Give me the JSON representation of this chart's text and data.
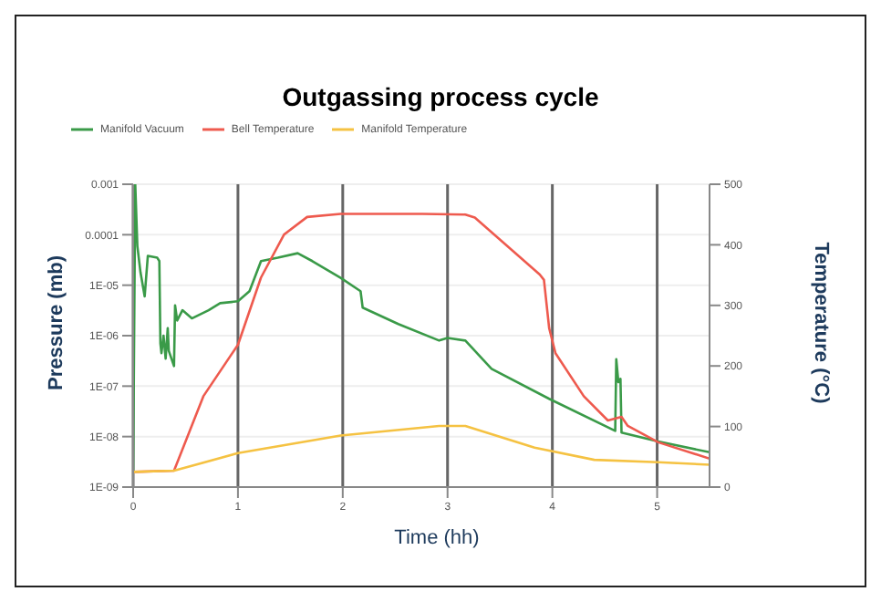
{
  "chart_data": {
    "type": "line",
    "title": "Outgassing process cycle",
    "xlabel": "Time (hh)",
    "ylabel": "Pressure (mb)",
    "y2label": "Temperature (°C)",
    "xlim": [
      0,
      5.5
    ],
    "xticks": [
      0,
      1,
      2,
      3,
      4,
      5
    ],
    "ylim": [
      1e-09,
      0.001
    ],
    "yticks": [
      {
        "value": 1e-09,
        "label": "1E-09"
      },
      {
        "value": 1e-08,
        "label": "1E-08"
      },
      {
        "value": 1e-07,
        "label": "1E-07"
      },
      {
        "value": 1e-06,
        "label": "1E-06"
      },
      {
        "value": 1e-05,
        "label": "1E-05"
      },
      {
        "value": 0.0001,
        "label": "0.0001"
      },
      {
        "value": 0.001,
        "label": "0.001"
      }
    ],
    "log": "y",
    "y2lim": [
      0,
      500
    ],
    "y2ticks": [
      0,
      100,
      200,
      300,
      400,
      500
    ],
    "grid": true,
    "legend": "top left",
    "marker": "none",
    "line_style": "solid",
    "series": [
      {
        "name": "Manifold Vacuum",
        "color": "#3a9a48",
        "x": [
          0,
          0.02,
          0.04,
          0.07,
          0.11,
          0.14,
          0.23,
          0.25,
          0.26,
          0.27,
          0.29,
          0.31,
          0.33,
          0.34,
          0.39,
          0.4,
          0.42,
          0.47,
          0.56,
          0.72,
          0.83,
          1.0,
          1.11,
          1.22,
          1.38,
          1.57,
          1.71,
          1.98,
          2.17,
          2.19,
          2.53,
          2.92,
          3.0,
          3.17,
          3.42,
          3.97,
          4.6,
          4.61,
          4.63,
          4.65,
          4.66,
          5.01,
          5.5
        ],
        "values": [
          2e-09,
          0.001,
          6e-05,
          1.8e-05,
          6e-06,
          3.8e-05,
          3.5e-05,
          3e-05,
          7e-07,
          4.5e-07,
          1e-06,
          3.5e-07,
          1.4e-06,
          5e-07,
          2.5e-07,
          4e-06,
          2e-06,
          3.2e-06,
          2.2e-06,
          3.2e-06,
          4.4e-06,
          4.8e-06,
          7.6e-06,
          3e-05,
          3.5e-05,
          4.3e-05,
          3e-05,
          1.4e-05,
          7.6e-06,
          3.6e-06,
          1.7e-06,
          8e-07,
          9e-07,
          8e-07,
          2.2e-07,
          5.6e-08,
          1.3e-08,
          3.4e-07,
          1.2e-07,
          1.4e-07,
          1.2e-08,
          8e-09,
          4.9e-09
        ]
      },
      {
        "name": "Bell Temperature",
        "color": "#ee5a4e",
        "axis": "y2",
        "x": [
          0,
          0.39,
          0.67,
          1.0,
          1.22,
          1.44,
          1.66,
          1.98,
          2.76,
          3.17,
          3.26,
          3.88,
          3.92,
          3.97,
          4.03,
          4.3,
          4.53,
          4.66,
          4.72,
          5.01,
          5.5
        ],
        "values": [
          25,
          27,
          150,
          235,
          346,
          417,
          446,
          451,
          451,
          450,
          445,
          351,
          342,
          262,
          221,
          150,
          110,
          116,
          101,
          74,
          47
        ]
      },
      {
        "name": "Manifold Temperature",
        "color": "#f5c242",
        "axis": "y2",
        "x": [
          0,
          0.39,
          1.0,
          1.98,
          2.92,
          3.0,
          3.17,
          3.83,
          4.4,
          5.01,
          5.5
        ],
        "values": [
          25,
          27,
          56,
          85,
          101,
          101,
          101,
          65,
          45,
          41,
          37
        ]
      }
    ]
  }
}
